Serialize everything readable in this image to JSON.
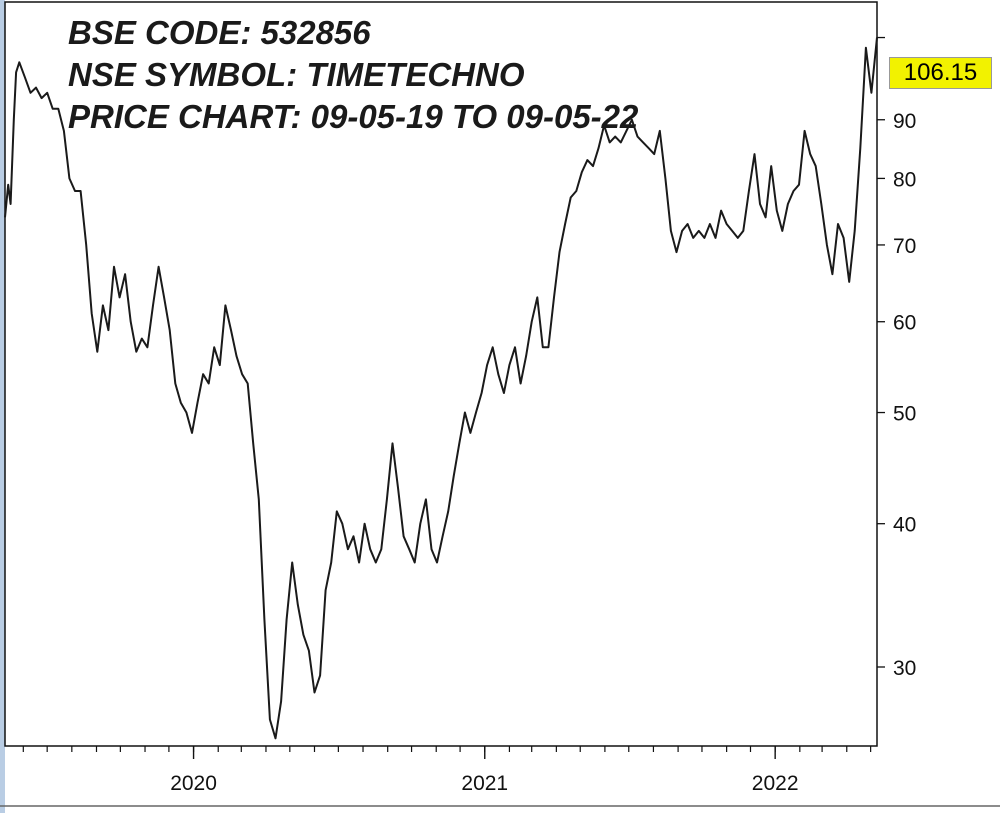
{
  "header": {
    "line1": "BSE CODE: 532856",
    "line2": "NSE SYMBOL: TIMETECHNO",
    "line3": "PRICE CHART: 09-05-19 TO 09-05-22"
  },
  "last_price_label": "106.15",
  "colors": {
    "line": "#1a1a1a",
    "badge": "#f2f200",
    "axis": "#111111",
    "left_edge": "#b9cde4"
  },
  "chart_data": {
    "type": "line",
    "title": "PRICE CHART: 09-05-19 TO 09-05-22",
    "xlabel": "",
    "ylabel": "",
    "y_scale": "log",
    "ylim": [
      25.6,
      114
    ],
    "xlim": [
      "2019-05-09",
      "2022-05-09"
    ],
    "y_ticks": [
      30,
      40,
      50,
      60,
      70,
      80,
      90
    ],
    "x_tick_labels": [
      {
        "label": "2020",
        "date": "2020-01-01"
      },
      {
        "label": "2021",
        "date": "2021-01-01"
      },
      {
        "label": "2022",
        "date": "2022-01-01"
      }
    ],
    "grid": false,
    "last_value": 106.15,
    "series": [
      {
        "points": [
          [
            "2019-05-09",
            74
          ],
          [
            "2019-05-13",
            79
          ],
          [
            "2019-05-16",
            76
          ],
          [
            "2019-05-20",
            90
          ],
          [
            "2019-05-23",
            99
          ],
          [
            "2019-05-27",
            101
          ],
          [
            "2019-06-03",
            98
          ],
          [
            "2019-06-10",
            95
          ],
          [
            "2019-06-17",
            96
          ],
          [
            "2019-06-24",
            94
          ],
          [
            "2019-07-01",
            95
          ],
          [
            "2019-07-08",
            92
          ],
          [
            "2019-07-15",
            92
          ],
          [
            "2019-07-22",
            88
          ],
          [
            "2019-07-29",
            80
          ],
          [
            "2019-08-05",
            78
          ],
          [
            "2019-08-12",
            78
          ],
          [
            "2019-08-19",
            70
          ],
          [
            "2019-08-26",
            61
          ],
          [
            "2019-09-02",
            56.5
          ],
          [
            "2019-09-09",
            62
          ],
          [
            "2019-09-16",
            59
          ],
          [
            "2019-09-23",
            67
          ],
          [
            "2019-09-30",
            63
          ],
          [
            "2019-10-07",
            66
          ],
          [
            "2019-10-14",
            60
          ],
          [
            "2019-10-21",
            56.5
          ],
          [
            "2019-10-28",
            58
          ],
          [
            "2019-11-04",
            57
          ],
          [
            "2019-11-11",
            62
          ],
          [
            "2019-11-18",
            67
          ],
          [
            "2019-11-25",
            63
          ],
          [
            "2019-12-02",
            59
          ],
          [
            "2019-12-09",
            53
          ],
          [
            "2019-12-16",
            51
          ],
          [
            "2019-12-23",
            50
          ],
          [
            "2019-12-30",
            48
          ],
          [
            "2020-01-06",
            51
          ],
          [
            "2020-01-13",
            54
          ],
          [
            "2020-01-20",
            53
          ],
          [
            "2020-01-27",
            57
          ],
          [
            "2020-02-03",
            55
          ],
          [
            "2020-02-10",
            62
          ],
          [
            "2020-02-17",
            59
          ],
          [
            "2020-02-24",
            56
          ],
          [
            "2020-03-02",
            54
          ],
          [
            "2020-03-09",
            53
          ],
          [
            "2020-03-16",
            47
          ],
          [
            "2020-03-23",
            42
          ],
          [
            "2020-03-30",
            33
          ],
          [
            "2020-04-06",
            27
          ],
          [
            "2020-04-13",
            26
          ],
          [
            "2020-04-20",
            28
          ],
          [
            "2020-04-27",
            33
          ],
          [
            "2020-05-04",
            37
          ],
          [
            "2020-05-11",
            34
          ],
          [
            "2020-05-18",
            32
          ],
          [
            "2020-05-25",
            31
          ],
          [
            "2020-06-01",
            28.5
          ],
          [
            "2020-06-08",
            29.5
          ],
          [
            "2020-06-15",
            35
          ],
          [
            "2020-06-22",
            37
          ],
          [
            "2020-06-29",
            41
          ],
          [
            "2020-07-06",
            40
          ],
          [
            "2020-07-13",
            38
          ],
          [
            "2020-07-20",
            39
          ],
          [
            "2020-07-27",
            37
          ],
          [
            "2020-08-03",
            40
          ],
          [
            "2020-08-10",
            38
          ],
          [
            "2020-08-17",
            37
          ],
          [
            "2020-08-24",
            38
          ],
          [
            "2020-08-31",
            42
          ],
          [
            "2020-09-07",
            47
          ],
          [
            "2020-09-14",
            43
          ],
          [
            "2020-09-21",
            39
          ],
          [
            "2020-09-28",
            38
          ],
          [
            "2020-10-05",
            37
          ],
          [
            "2020-10-12",
            40
          ],
          [
            "2020-10-19",
            42
          ],
          [
            "2020-10-26",
            38
          ],
          [
            "2020-11-02",
            37
          ],
          [
            "2020-11-09",
            39
          ],
          [
            "2020-11-16",
            41
          ],
          [
            "2020-11-23",
            44
          ],
          [
            "2020-11-30",
            47
          ],
          [
            "2020-12-07",
            50
          ],
          [
            "2020-12-14",
            48
          ],
          [
            "2020-12-21",
            50
          ],
          [
            "2020-12-28",
            52
          ],
          [
            "2021-01-04",
            55
          ],
          [
            "2021-01-11",
            57
          ],
          [
            "2021-01-18",
            54
          ],
          [
            "2021-01-25",
            52
          ],
          [
            "2021-02-01",
            55
          ],
          [
            "2021-02-08",
            57
          ],
          [
            "2021-02-15",
            53
          ],
          [
            "2021-02-22",
            56
          ],
          [
            "2021-03-01",
            60
          ],
          [
            "2021-03-08",
            63
          ],
          [
            "2021-03-15",
            57
          ],
          [
            "2021-03-22",
            57
          ],
          [
            "2021-03-29",
            63
          ],
          [
            "2021-04-05",
            69
          ],
          [
            "2021-04-12",
            73
          ],
          [
            "2021-04-19",
            77
          ],
          [
            "2021-04-26",
            78
          ],
          [
            "2021-05-03",
            81
          ],
          [
            "2021-05-10",
            83
          ],
          [
            "2021-05-17",
            82
          ],
          [
            "2021-05-24",
            85
          ],
          [
            "2021-05-31",
            89
          ],
          [
            "2021-06-07",
            86
          ],
          [
            "2021-06-14",
            87
          ],
          [
            "2021-06-21",
            86
          ],
          [
            "2021-06-28",
            88
          ],
          [
            "2021-07-05",
            90
          ],
          [
            "2021-07-12",
            87
          ],
          [
            "2021-07-19",
            86
          ],
          [
            "2021-07-26",
            85
          ],
          [
            "2021-08-02",
            84
          ],
          [
            "2021-08-09",
            88
          ],
          [
            "2021-08-16",
            80
          ],
          [
            "2021-08-23",
            72
          ],
          [
            "2021-08-30",
            69
          ],
          [
            "2021-09-06",
            72
          ],
          [
            "2021-09-13",
            73
          ],
          [
            "2021-09-20",
            71
          ],
          [
            "2021-09-27",
            72
          ],
          [
            "2021-10-04",
            71
          ],
          [
            "2021-10-11",
            73
          ],
          [
            "2021-10-18",
            71
          ],
          [
            "2021-10-25",
            75
          ],
          [
            "2021-11-01",
            73
          ],
          [
            "2021-11-08",
            72
          ],
          [
            "2021-11-15",
            71
          ],
          [
            "2021-11-22",
            72
          ],
          [
            "2021-11-29",
            78
          ],
          [
            "2021-12-06",
            84
          ],
          [
            "2021-12-13",
            76
          ],
          [
            "2021-12-20",
            74
          ],
          [
            "2021-12-27",
            82
          ],
          [
            "2022-01-03",
            75
          ],
          [
            "2022-01-10",
            72
          ],
          [
            "2022-01-17",
            76
          ],
          [
            "2022-01-24",
            78
          ],
          [
            "2022-01-31",
            79
          ],
          [
            "2022-02-07",
            88
          ],
          [
            "2022-02-14",
            84
          ],
          [
            "2022-02-21",
            82
          ],
          [
            "2022-02-28",
            76
          ],
          [
            "2022-03-07",
            70
          ],
          [
            "2022-03-14",
            66
          ],
          [
            "2022-03-21",
            73
          ],
          [
            "2022-03-28",
            71
          ],
          [
            "2022-04-04",
            65
          ],
          [
            "2022-04-11",
            72
          ],
          [
            "2022-04-18",
            85
          ],
          [
            "2022-04-25",
            104
          ],
          [
            "2022-05-02",
            95
          ],
          [
            "2022-05-09",
            106.15
          ]
        ]
      }
    ]
  }
}
